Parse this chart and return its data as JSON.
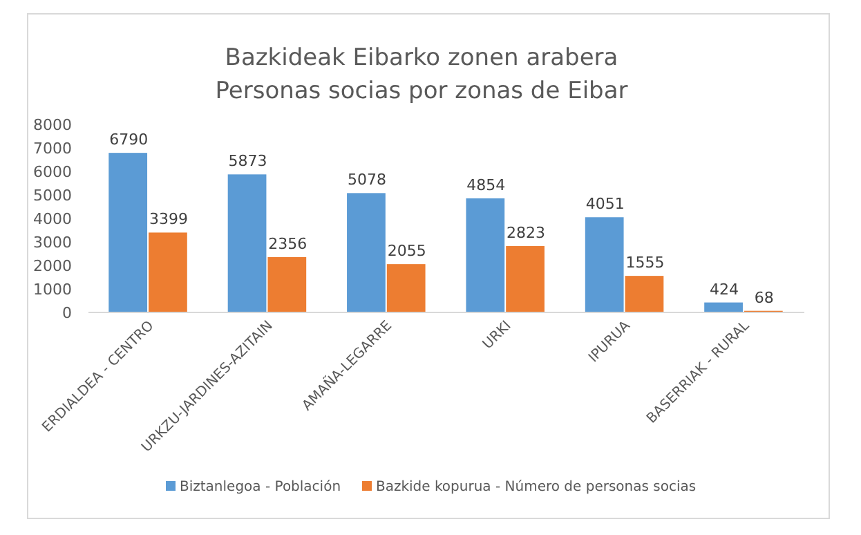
{
  "chart_data": {
    "type": "bar",
    "title": "Bazkideak Eibarko zonen arabera\nPersonas socias por zonas de Eibar",
    "categories": [
      "ERDIALDEA - CENTRO",
      "URKZU-JARDINES-AZITAIN",
      "AMAÑA-LEGARRE",
      "URKI",
      "IPURUA",
      "BASERRIAK - RURAL"
    ],
    "series": [
      {
        "name": "Biztanlegoa - Población",
        "color": "#5b9bd5",
        "values": [
          6790,
          5873,
          5078,
          4854,
          4051,
          424
        ]
      },
      {
        "name": "Bazkide kopurua - Número de personas socias",
        "color": "#ed7d31",
        "values": [
          3399,
          2356,
          2055,
          2823,
          1555,
          68
        ]
      }
    ],
    "ylim": [
      0,
      8000
    ],
    "yticks": [
      0,
      1000,
      2000,
      3000,
      4000,
      5000,
      6000,
      7000,
      8000
    ],
    "data_labels": true,
    "legend": "bottom",
    "grid": false
  }
}
